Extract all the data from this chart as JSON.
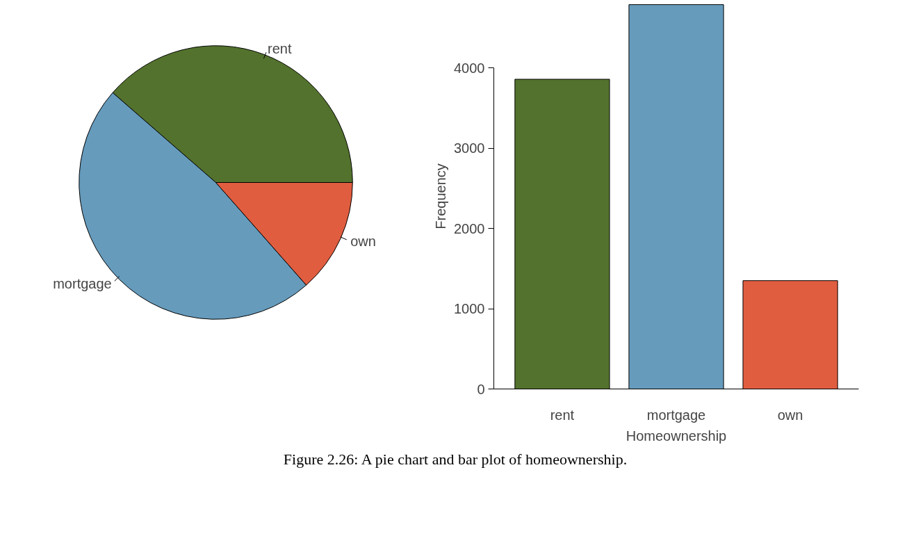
{
  "chart_data": [
    {
      "type": "pie",
      "categories": [
        "rent",
        "mortgage",
        "own"
      ],
      "values": [
        38.6,
        47.9,
        13.5
      ],
      "colors": [
        "#53722d",
        "#669bbc",
        "#e05d40"
      ]
    },
    {
      "type": "bar",
      "categories": [
        "rent",
        "mortgage",
        "own"
      ],
      "values": [
        3860,
        4790,
        1350
      ],
      "colors": [
        "#53722d",
        "#669bbc",
        "#e05d40"
      ],
      "xlabel": "Homeownership",
      "ylabel": "Frequency",
      "ylim": [
        0,
        4800
      ],
      "yticks": [
        0,
        1000,
        2000,
        3000,
        4000
      ],
      "grid": false,
      "annotations": [
        "Figure 2.26: A pie chart and bar plot of homeownership."
      ]
    }
  ]
}
